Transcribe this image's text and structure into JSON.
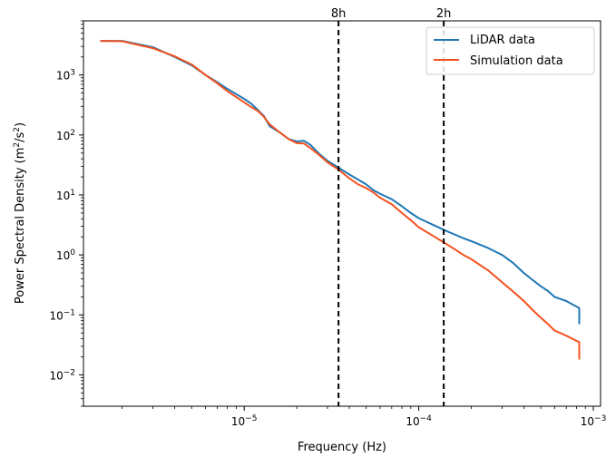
{
  "chart_data": {
    "type": "line",
    "title": "",
    "xlabel": "Frequency (Hz)",
    "ylabel_main": "Power Spectral Density (m",
    "ylabel_sup1": "2",
    "ylabel_mid": "/s",
    "ylabel_sup2": "2",
    "ylabel_end": ")",
    "xscale": "log",
    "yscale": "log",
    "xlim": [
      1.2e-06,
      0.0011
    ],
    "ylim": [
      0.003,
      8000
    ],
    "grid": false,
    "legend_position": "top-right",
    "x_ticks": [
      {
        "value": 1e-05,
        "base": "10",
        "exp": "−5"
      },
      {
        "value": 0.0001,
        "base": "10",
        "exp": "−4"
      },
      {
        "value": 0.001,
        "base": "10",
        "exp": "−3"
      }
    ],
    "y_ticks": [
      {
        "value": 1000.0,
        "base": "10",
        "exp": "3"
      },
      {
        "value": 100.0,
        "base": "10",
        "exp": "2"
      },
      {
        "value": 10.0,
        "base": "10",
        "exp": "1"
      },
      {
        "value": 1.0,
        "base": "10",
        "exp": "0"
      },
      {
        "value": 0.1,
        "base": "10",
        "exp": "−1"
      },
      {
        "value": 0.01,
        "base": "10",
        "exp": "−2"
      }
    ],
    "vlines": [
      {
        "x": 3.47e-05,
        "label": "8h"
      },
      {
        "x": 0.000139,
        "label": "2h"
      }
    ],
    "series": [
      {
        "name": "LiDAR data",
        "color": "#1f77b4",
        "points": [
          [
            1.5e-06,
            3700
          ],
          [
            2e-06,
            3700
          ],
          [
            3e-06,
            2900
          ],
          [
            4e-06,
            2000
          ],
          [
            5e-06,
            1450
          ],
          [
            6e-06,
            1000
          ],
          [
            7e-06,
            760
          ],
          [
            8e-06,
            590
          ],
          [
            9e-06,
            480
          ],
          [
            1e-05,
            400
          ],
          [
            1.1e-05,
            330
          ],
          [
            1.2e-05,
            260
          ],
          [
            1.3e-05,
            205
          ],
          [
            1.4e-05,
            140
          ],
          [
            1.6e-05,
            110
          ],
          [
            1.8e-05,
            85
          ],
          [
            2e-05,
            78
          ],
          [
            2.2e-05,
            80
          ],
          [
            2.4e-05,
            68
          ],
          [
            2.7e-05,
            48
          ],
          [
            3e-05,
            37
          ],
          [
            3.5e-05,
            28
          ],
          [
            4e-05,
            22
          ],
          [
            4.5e-05,
            18
          ],
          [
            5e-05,
            15
          ],
          [
            5.5e-05,
            12
          ],
          [
            6e-05,
            10.5
          ],
          [
            7e-05,
            8.5
          ],
          [
            8e-05,
            6.5
          ],
          [
            9e-05,
            5
          ],
          [
            0.0001,
            4.1
          ],
          [
            0.00012,
            3.2
          ],
          [
            0.00014,
            2.6
          ],
          [
            0.00016,
            2.2
          ],
          [
            0.00018,
            1.9
          ],
          [
            0.0002,
            1.7
          ],
          [
            0.00025,
            1.3
          ],
          [
            0.0003,
            1.0
          ],
          [
            0.00035,
            0.72
          ],
          [
            0.0004,
            0.5
          ],
          [
            0.00045,
            0.38
          ],
          [
            0.0005,
            0.3
          ],
          [
            0.00055,
            0.25
          ],
          [
            0.0006,
            0.2
          ],
          [
            0.0007,
            0.17
          ],
          [
            0.00083,
            0.13
          ],
          [
            0.00083,
            0.07
          ]
        ]
      },
      {
        "name": "Simulation data",
        "color": "#f4511e",
        "points": [
          [
            1.5e-06,
            3700
          ],
          [
            2e-06,
            3650
          ],
          [
            3e-06,
            2800
          ],
          [
            4e-06,
            2050
          ],
          [
            5e-06,
            1500
          ],
          [
            6e-06,
            1000
          ],
          [
            7e-06,
            730
          ],
          [
            8e-06,
            540
          ],
          [
            9e-06,
            430
          ],
          [
            1e-05,
            350
          ],
          [
            1.1e-05,
            290
          ],
          [
            1.2e-05,
            250
          ],
          [
            1.3e-05,
            200
          ],
          [
            1.4e-05,
            150
          ],
          [
            1.6e-05,
            110
          ],
          [
            1.8e-05,
            85
          ],
          [
            2e-05,
            73
          ],
          [
            2.2e-05,
            72
          ],
          [
            2.4e-05,
            60
          ],
          [
            2.7e-05,
            46
          ],
          [
            3e-05,
            35
          ],
          [
            3.5e-05,
            26
          ],
          [
            4e-05,
            19
          ],
          [
            4.5e-05,
            15
          ],
          [
            5e-05,
            13
          ],
          [
            5.5e-05,
            11
          ],
          [
            6e-05,
            9
          ],
          [
            7e-05,
            7
          ],
          [
            8e-05,
            5
          ],
          [
            9e-05,
            3.8
          ],
          [
            0.0001,
            2.9
          ],
          [
            0.00012,
            2.1
          ],
          [
            0.00014,
            1.6
          ],
          [
            0.00016,
            1.25
          ],
          [
            0.00018,
            1.0
          ],
          [
            0.0002,
            0.85
          ],
          [
            0.00025,
            0.55
          ],
          [
            0.0003,
            0.35
          ],
          [
            0.00035,
            0.24
          ],
          [
            0.0004,
            0.17
          ],
          [
            0.00045,
            0.12
          ],
          [
            0.0005,
            0.09
          ],
          [
            0.00055,
            0.07
          ],
          [
            0.0006,
            0.055
          ],
          [
            0.0007,
            0.045
          ],
          [
            0.00083,
            0.035
          ],
          [
            0.00083,
            0.018
          ]
        ]
      }
    ]
  }
}
